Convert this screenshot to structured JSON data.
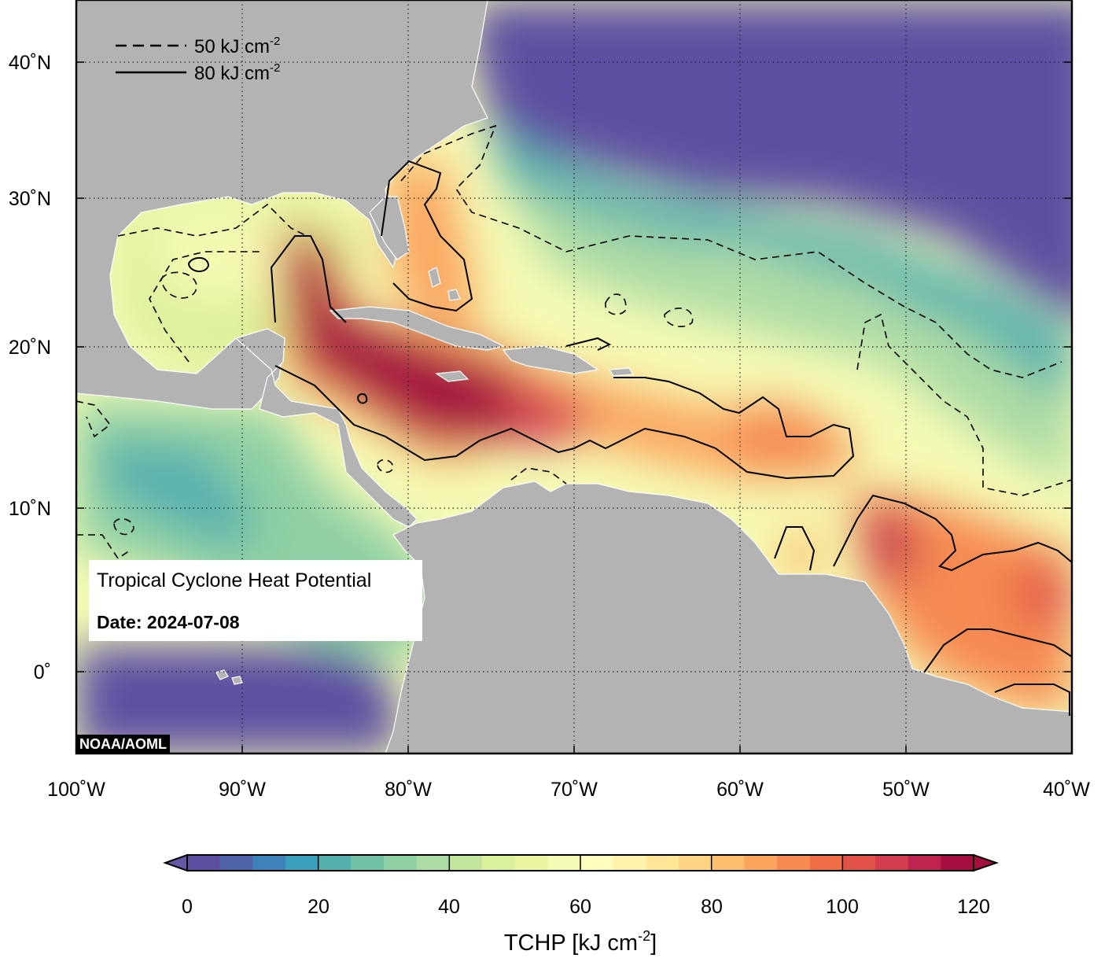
{
  "map": {
    "title": "Tropical Cyclone Heat Potential",
    "date_label": "Date: 2024-07-08",
    "credit": "NOAA/AOML",
    "lat_labels": [
      "40˚N",
      "30˚N",
      "20˚N",
      "10˚N",
      "0˚"
    ],
    "lon_labels": [
      "100˚W",
      "90˚W",
      "80˚W",
      "70˚W",
      "60˚W",
      "50˚W",
      "40˚W"
    ],
    "extent": {
      "lon": [
        -100,
        -40
      ],
      "lat": [
        -5,
        44
      ]
    },
    "contour_legend": {
      "dashed": {
        "text": "50 kJ cm",
        "sup": "-2"
      },
      "solid": {
        "text": "80 kJ cm",
        "sup": "-2"
      }
    },
    "land_color": "#b3b3b3",
    "ocean_cold_color": "#6556a6"
  },
  "colorbar": {
    "ticks": [
      "0",
      "20",
      "40",
      "60",
      "80",
      "100",
      "120"
    ],
    "title": "TCHP [kJ cm",
    "title_sup": "-2",
    "title_close": "]",
    "min": 0,
    "max": 120,
    "step": 5,
    "colors": [
      "#5e4fa2",
      "#4f63ab",
      "#3e82bc",
      "#3a9fbb",
      "#56b1ae",
      "#72c3a5",
      "#8fd0a4",
      "#acdba4",
      "#c4e59e",
      "#daf09a",
      "#ebf5a0",
      "#f5fab4",
      "#fffebf",
      "#fff2ab",
      "#fee597",
      "#fed382",
      "#fdbd6f",
      "#fba55f",
      "#f68a51",
      "#ef6d47",
      "#e15248",
      "#d43d4f",
      "#bf2450",
      "#a50f3f"
    ]
  }
}
